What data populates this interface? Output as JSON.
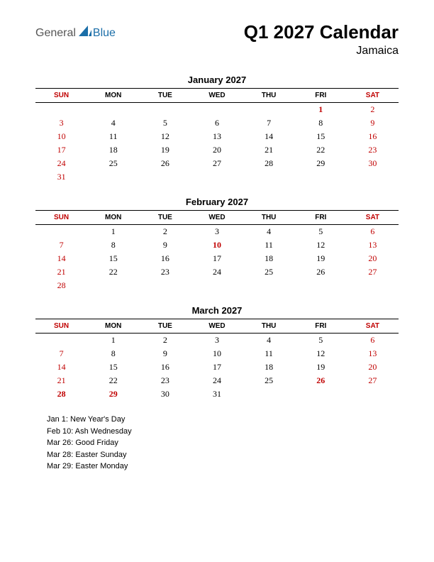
{
  "logo": {
    "text1": "General",
    "text2": "Blue",
    "shape_color": "#1b6ea8",
    "text1_color": "#555555"
  },
  "title": "Q1 2027 Calendar",
  "subtitle": "Jamaica",
  "day_headers": [
    "SUN",
    "MON",
    "TUE",
    "WED",
    "THU",
    "FRI",
    "SAT"
  ],
  "colors": {
    "weekend": "#c00000",
    "text": "#000000",
    "bg": "#ffffff"
  },
  "months": [
    {
      "name": "January 2027",
      "weeks": [
        [
          "",
          "",
          "",
          "",
          "",
          "1",
          "2"
        ],
        [
          "3",
          "4",
          "5",
          "6",
          "7",
          "8",
          "9"
        ],
        [
          "10",
          "11",
          "12",
          "13",
          "14",
          "15",
          "16"
        ],
        [
          "17",
          "18",
          "19",
          "20",
          "21",
          "22",
          "23"
        ],
        [
          "24",
          "25",
          "26",
          "27",
          "28",
          "29",
          "30"
        ],
        [
          "31",
          "",
          "",
          "",
          "",
          "",
          ""
        ]
      ],
      "holidays": [
        "1"
      ]
    },
    {
      "name": "February 2027",
      "weeks": [
        [
          "",
          "1",
          "2",
          "3",
          "4",
          "5",
          "6"
        ],
        [
          "7",
          "8",
          "9",
          "10",
          "11",
          "12",
          "13"
        ],
        [
          "14",
          "15",
          "16",
          "17",
          "18",
          "19",
          "20"
        ],
        [
          "21",
          "22",
          "23",
          "24",
          "25",
          "26",
          "27"
        ],
        [
          "28",
          "",
          "",
          "",
          "",
          "",
          ""
        ]
      ],
      "holidays": [
        "10"
      ]
    },
    {
      "name": "March 2027",
      "weeks": [
        [
          "",
          "1",
          "2",
          "3",
          "4",
          "5",
          "6"
        ],
        [
          "7",
          "8",
          "9",
          "10",
          "11",
          "12",
          "13"
        ],
        [
          "14",
          "15",
          "16",
          "17",
          "18",
          "19",
          "20"
        ],
        [
          "21",
          "22",
          "23",
          "24",
          "25",
          "26",
          "27"
        ],
        [
          "28",
          "29",
          "30",
          "31",
          "",
          "",
          ""
        ]
      ],
      "holidays": [
        "26",
        "28",
        "29"
      ]
    }
  ],
  "holiday_list": [
    "Jan 1: New Year's Day",
    "Feb 10: Ash Wednesday",
    "Mar 26: Good Friday",
    "Mar 28: Easter Sunday",
    "Mar 29: Easter Monday"
  ]
}
